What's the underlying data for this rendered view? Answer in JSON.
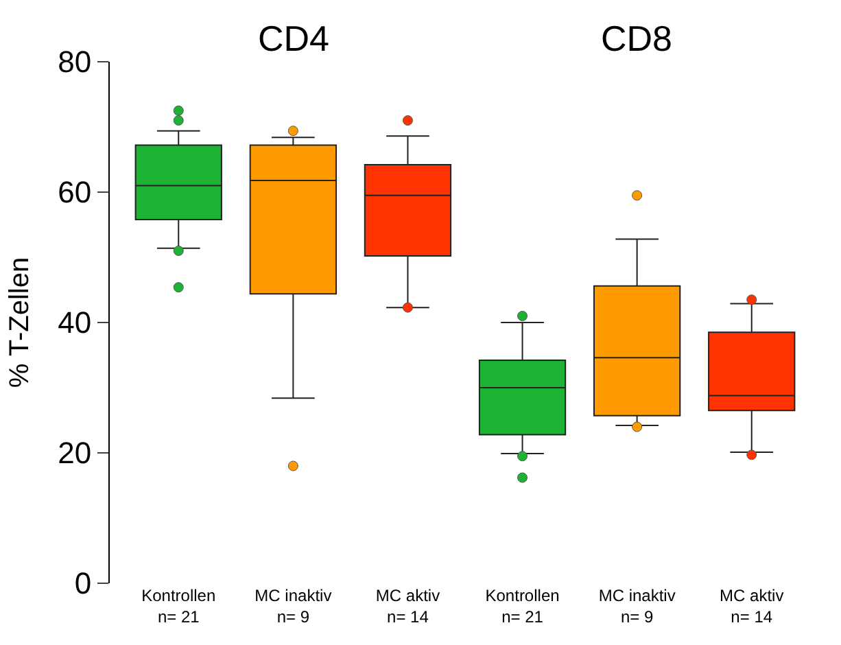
{
  "chart_data": {
    "type": "box",
    "ylabel": "% T-Zellen",
    "annotations": [
      "CD4",
      "CD8"
    ],
    "categories": [
      "Kontrollen\nn= 21",
      "MC inaktiv\nn= 9",
      "MC aktiv\nn= 14",
      "Kontrollen\nn= 21",
      "MC inaktiv\nn= 9",
      "MC aktiv\nn= 14"
    ],
    "colors": [
      "#1db233",
      "#ff9a00",
      "#ff3300",
      "#1db233",
      "#ff9a00",
      "#ff3300"
    ],
    "boxes": [
      {
        "low": 51.4,
        "q1": 55.8,
        "median": 61,
        "q3": 67.2,
        "high": 69.4,
        "outliers": [
          72.5,
          71,
          51,
          45.4
        ]
      },
      {
        "low": 28.4,
        "q1": 44.4,
        "median": 61.8,
        "q3": 67.2,
        "high": 68.4,
        "outliers": [
          69.4,
          18
        ]
      },
      {
        "low": 42.3,
        "q1": 50.2,
        "median": 59.5,
        "q3": 64.2,
        "high": 68.6,
        "outliers": [
          71,
          42.3
        ]
      },
      {
        "low": 19.9,
        "q1": 22.8,
        "median": 30,
        "q3": 34.2,
        "high": 40,
        "outliers": [
          41,
          19.5,
          16.2
        ]
      },
      {
        "low": 24.2,
        "q1": 25.7,
        "median": 34.6,
        "q3": 45.6,
        "high": 52.8,
        "outliers": [
          59.5,
          24
        ]
      },
      {
        "low": 20.1,
        "q1": 26.5,
        "median": 28.8,
        "q3": 38.5,
        "high": 42.9,
        "outliers": [
          43.5,
          19.7
        ]
      }
    ],
    "ylim": [
      0,
      80
    ],
    "yticks": [
      0,
      20,
      40,
      60,
      80
    ]
  }
}
